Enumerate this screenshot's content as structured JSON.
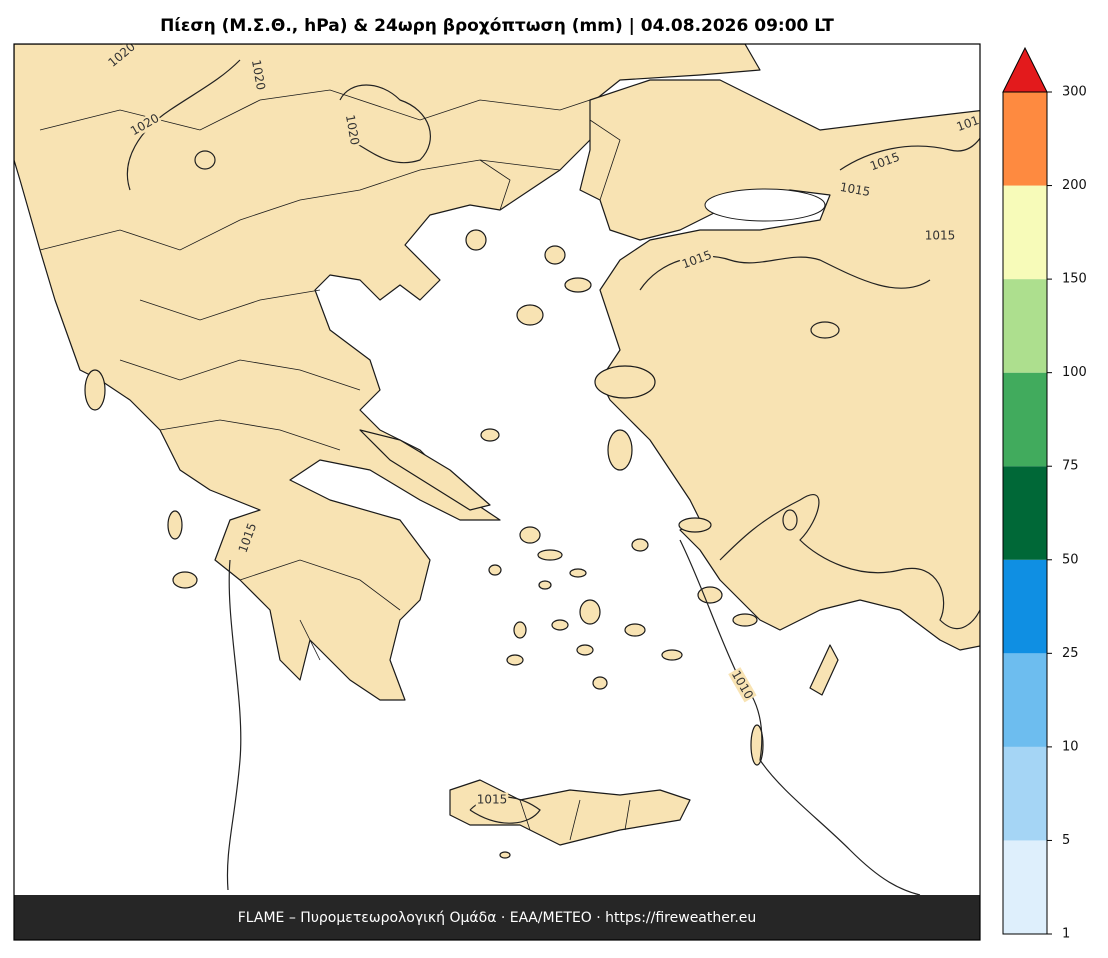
{
  "title": "Πίεση (Μ.Σ.Θ., hPa) & 24ωρη βροχόπτωση (mm)  |  04.08.2026 09:00 LT",
  "footer": "FLAME – Πυρομετεωρολογική Ομάδα · ΕΑΑ/METEO · https://fireweather.eu",
  "contour_labels": [
    "1020",
    "1020",
    "1020",
    "1020",
    "1015",
    "1015",
    "1015",
    "101",
    "1015",
    "1015",
    "1015",
    "1010"
  ],
  "colorbar": {
    "ticks": [
      1,
      5,
      10,
      25,
      50,
      75,
      100,
      150,
      200,
      300
    ],
    "colors": [
      "#deeffc",
      "#a5d5f5",
      "#6dbdef",
      "#0f8fe3",
      "#006837",
      "#41ab5d",
      "#addf8e",
      "#f7fbb9",
      "#fe8a40"
    ],
    "extend_color": "#e31a1c"
  }
}
